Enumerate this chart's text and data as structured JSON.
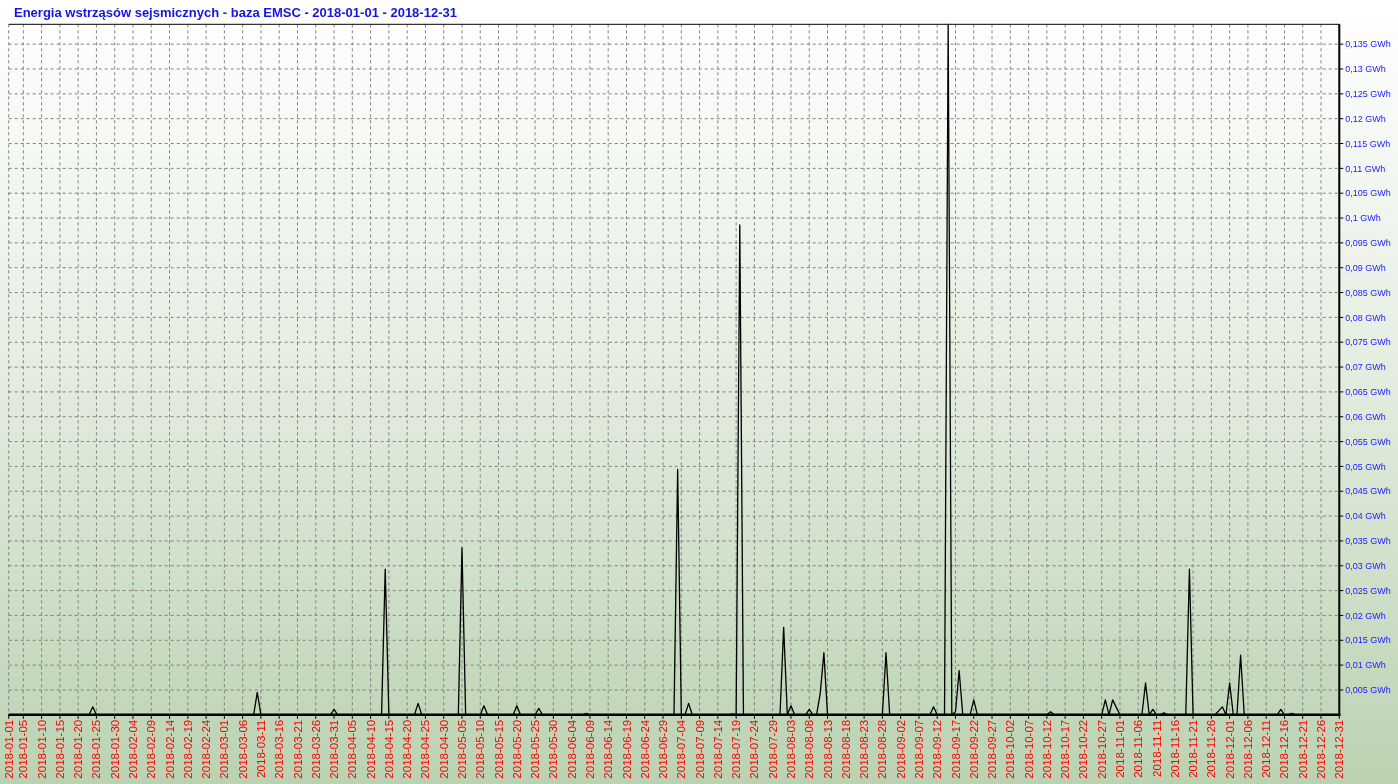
{
  "chart_data": {
    "type": "line",
    "title": "Energia wstrząsów sejsmicznych - baza EMSC - 2018-01-01 - 2018-12-31",
    "x": [
      "2018-01-01",
      "2018-01-23",
      "2018-01-24",
      "2018-01-25",
      "2018-03-09",
      "2018-03-10",
      "2018-03-11",
      "2018-03-30",
      "2018-03-31",
      "2018-04-01",
      "2018-04-13",
      "2018-04-14",
      "2018-04-15",
      "2018-04-22",
      "2018-04-23",
      "2018-04-24",
      "2018-05-04",
      "2018-05-05",
      "2018-05-06",
      "2018-05-10",
      "2018-05-11",
      "2018-05-12",
      "2018-05-19",
      "2018-05-20",
      "2018-05-21",
      "2018-05-25",
      "2018-05-26",
      "2018-05-27",
      "2018-06-07",
      "2018-06-08",
      "2018-06-09",
      "2018-07-02",
      "2018-07-03",
      "2018-07-04",
      "2018-07-05",
      "2018-07-06",
      "2018-07-07",
      "2018-07-17",
      "2018-07-18",
      "2018-07-19",
      "2018-07-20",
      "2018-07-21",
      "2018-07-31",
      "2018-08-01",
      "2018-08-02",
      "2018-08-03",
      "2018-08-04",
      "2018-08-07",
      "2018-08-08",
      "2018-08-09",
      "2018-08-10",
      "2018-08-11",
      "2018-08-12",
      "2018-08-13",
      "2018-08-28",
      "2018-08-29",
      "2018-08-30",
      "2018-09-10",
      "2018-09-11",
      "2018-09-12",
      "2018-09-14",
      "2018-09-15",
      "2018-09-16",
      "2018-09-17",
      "2018-09-18",
      "2018-09-19",
      "2018-09-21",
      "2018-09-22",
      "2018-09-23",
      "2018-10-12",
      "2018-10-13",
      "2018-10-14",
      "2018-10-27",
      "2018-10-28",
      "2018-10-29",
      "2018-10-30",
      "2018-10-31",
      "2018-11-01",
      "2018-11-07",
      "2018-11-08",
      "2018-11-09",
      "2018-11-10",
      "2018-11-11",
      "2018-11-12",
      "2018-11-13",
      "2018-11-14",
      "2018-11-19",
      "2018-11-20",
      "2018-11-21",
      "2018-11-27",
      "2018-11-28",
      "2018-11-29",
      "2018-11-30",
      "2018-12-01",
      "2018-12-02",
      "2018-12-03",
      "2018-12-04",
      "2018-12-05",
      "2018-12-14",
      "2018-12-15",
      "2018-12-16",
      "2018-12-17",
      "2018-12-18",
      "2018-12-19",
      "2018-12-31"
    ],
    "series": [
      {
        "color": "#000000",
        "values": [
          0,
          0,
          0.0016,
          0,
          0,
          0.0045,
          0,
          0,
          0.0011,
          0,
          0,
          0.0293,
          0,
          0,
          0.0023,
          0,
          0,
          0.0336,
          0,
          0,
          0.0018,
          0,
          0,
          0.0018,
          0,
          0,
          0.0013,
          0,
          0,
          0.0003,
          0,
          0,
          0.0494,
          0,
          0,
          0.0023,
          0,
          0,
          0.0002,
          0,
          0.0986,
          0,
          0,
          0.0176,
          0,
          0.0018,
          0,
          0,
          0.0011,
          0,
          0,
          0.0043,
          0.0125,
          0,
          0,
          0.0125,
          0,
          0,
          0.0016,
          0,
          0,
          0.139,
          0,
          0.0006,
          0.0089,
          0,
          0,
          0.003,
          0,
          0,
          0.0006,
          0,
          0,
          0.003,
          0,
          0.003,
          0.0015,
          0,
          0,
          0.0064,
          0,
          0.0011,
          0,
          0,
          0.0004,
          0,
          0,
          0.0293,
          0,
          0,
          0.0008,
          0.0016,
          0,
          0.0064,
          0,
          0,
          0.012,
          0,
          0,
          0.0011,
          0,
          0,
          0.0003,
          0,
          0
        ]
      }
    ],
    "xlim": [
      "2018-01-01",
      "2018-12-31"
    ],
    "xticks": [
      "2018-01-01",
      "2018-01-05",
      "2018-01-10",
      "2018-01-15",
      "2018-01-20",
      "2018-01-25",
      "2018-01-30",
      "2018-02-04",
      "2018-02-09",
      "2018-02-14",
      "2018-02-19",
      "2018-02-24",
      "2018-03-01",
      "2018-03-06",
      "2018-03-11",
      "2018-03-16",
      "2018-03-21",
      "2018-03-26",
      "2018-03-31",
      "2018-04-05",
      "2018-04-10",
      "2018-04-15",
      "2018-04-20",
      "2018-04-25",
      "2018-04-30",
      "2018-05-05",
      "2018-05-10",
      "2018-05-15",
      "2018-05-20",
      "2018-05-25",
      "2018-05-30",
      "2018-06-04",
      "2018-06-09",
      "2018-06-14",
      "2018-06-19",
      "2018-06-24",
      "2018-06-29",
      "2018-07-04",
      "2018-07-09",
      "2018-07-14",
      "2018-07-19",
      "2018-07-24",
      "2018-07-29",
      "2018-08-03",
      "2018-08-08",
      "2018-08-13",
      "2018-08-18",
      "2018-08-23",
      "2018-08-28",
      "2018-09-02",
      "2018-09-07",
      "2018-09-12",
      "2018-09-17",
      "2018-09-22",
      "2018-09-27",
      "2018-10-02",
      "2018-10-07",
      "2018-10-12",
      "2018-10-17",
      "2018-10-22",
      "2018-10-27",
      "2018-11-01",
      "2018-11-06",
      "2018-11-11",
      "2018-11-16",
      "2018-11-21",
      "2018-11-26",
      "2018-12-01",
      "2018-12-06",
      "2018-12-11",
      "2018-12-16",
      "2018-12-21",
      "2018-12-26",
      "2018-12-31"
    ],
    "ylim": [
      0,
      0.139
    ],
    "yticks": [
      {
        "value": 0.005,
        "label": "0,005 GWh"
      },
      {
        "value": 0.01,
        "label": "0,01 GWh"
      },
      {
        "value": 0.015,
        "label": "0,015 GWh"
      },
      {
        "value": 0.02,
        "label": "0,02 GWh"
      },
      {
        "value": 0.025,
        "label": "0,025 GWh"
      },
      {
        "value": 0.03,
        "label": "0,03 GWh"
      },
      {
        "value": 0.035,
        "label": "0,035 GWh"
      },
      {
        "value": 0.04,
        "label": "0,04 GWh"
      },
      {
        "value": 0.045,
        "label": "0,045 GWh"
      },
      {
        "value": 0.05,
        "label": "0,05 GWh"
      },
      {
        "value": 0.055,
        "label": "0,055 GWh"
      },
      {
        "value": 0.06,
        "label": "0,06 GWh"
      },
      {
        "value": 0.065,
        "label": "0,065 GWh"
      },
      {
        "value": 0.07,
        "label": "0,07 GWh"
      },
      {
        "value": 0.075,
        "label": "0,075 GWh"
      },
      {
        "value": 0.08,
        "label": "0,08 GWh"
      },
      {
        "value": 0.085,
        "label": "0,085 GWh"
      },
      {
        "value": 0.09,
        "label": "0,09 GWh"
      },
      {
        "value": 0.095,
        "label": "0,095 GWh"
      },
      {
        "value": 0.1,
        "label": "0,1 GWh"
      },
      {
        "value": 0.105,
        "label": "0,105 GWh"
      },
      {
        "value": 0.11,
        "label": "0,11 GWh"
      },
      {
        "value": 0.115,
        "label": "0,115 GWh"
      },
      {
        "value": 0.12,
        "label": "0,12 GWh"
      },
      {
        "value": 0.125,
        "label": "0,125 GWh"
      },
      {
        "value": 0.13,
        "label": "0,13 GWh"
      },
      {
        "value": 0.135,
        "label": "0,135 GWh"
      }
    ],
    "grid": true
  }
}
